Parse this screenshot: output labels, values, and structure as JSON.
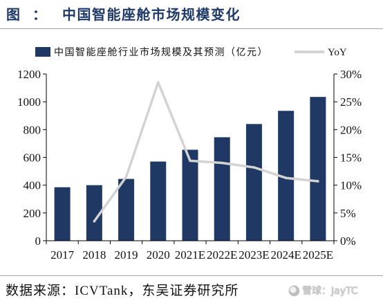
{
  "header": {
    "figure_label": "图",
    "separator": "："
  },
  "chart_data": {
    "type": "bar",
    "title": "中国智能座舱市场规模变化",
    "categories": [
      "2017",
      "2018",
      "2019",
      "2020",
      "2021E",
      "2022E",
      "2023E",
      "2024E",
      "2025E"
    ],
    "series": [
      {
        "name": "中国智能座舱行业市场规模及其预测（亿元）",
        "type": "bar",
        "axis": "left",
        "values": [
          385,
          400,
          445,
          570,
          655,
          745,
          840,
          935,
          1035
        ],
        "color": "#1F3864"
      },
      {
        "name": "YoY",
        "type": "line",
        "axis": "right",
        "values": [
          null,
          3.5,
          11.5,
          28.5,
          14.4,
          14.0,
          13.2,
          11.3,
          10.7
        ],
        "color": "#D3D3D3"
      }
    ],
    "ylim": [
      0,
      1200
    ],
    "yticks": [
      0,
      200,
      400,
      600,
      800,
      1000,
      1200
    ],
    "y2lim": [
      0,
      30
    ],
    "y2ticks": [
      "0%",
      "5%",
      "10%",
      "15%",
      "20%",
      "25%",
      "30%"
    ],
    "legend": "top",
    "grid": false,
    "axis_color": "#000000"
  },
  "footer": {
    "source": "数据来源：ICVTank，东吴证券研究所",
    "watermark": "雪球：JayTC"
  }
}
